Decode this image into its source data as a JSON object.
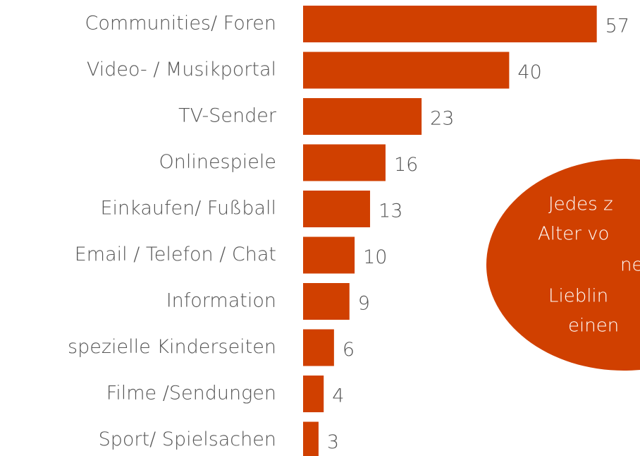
{
  "chart_data": {
    "type": "bar",
    "orientation": "horizontal",
    "categories": [
      "Communities/ Foren",
      "Video- / Musikportal",
      "TV-Sender",
      "Onlinespiele",
      "Einkaufen/ Fußball",
      "Email / Telefon / Chat",
      "Information",
      "spezielle Kinderseiten",
      "Filme /Sendungen",
      "Sport/ Spielsachen"
    ],
    "values": [
      57,
      40,
      23,
      16,
      13,
      10,
      9,
      6,
      4,
      3
    ],
    "color": "#d04000",
    "annotation": {
      "lines": [
        "Jedes z",
        "Alter vo",
        "ne",
        "Lieblin",
        "einen"
      ],
      "color": "#d04000"
    }
  }
}
